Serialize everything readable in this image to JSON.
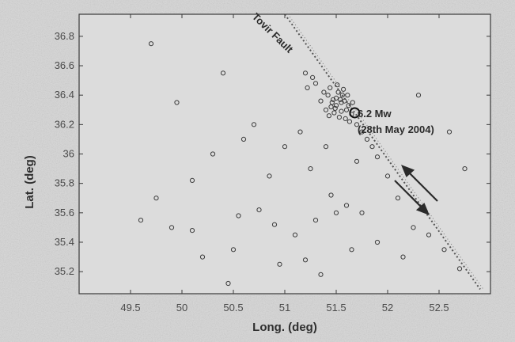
{
  "chart_data": {
    "type": "scatter",
    "xlabel": "Long. (deg)",
    "ylabel": "Lat. (deg)",
    "xlim": [
      49.0,
      53.0
    ],
    "ylim": [
      35.05,
      36.95
    ],
    "x_ticks": [
      "49.5",
      "50",
      "50.5",
      "51",
      "51.5",
      "52",
      "52.5"
    ],
    "y_ticks": [
      "35.2",
      "35.4",
      "35.6",
      "35.8",
      "36",
      "36.2",
      "36.4",
      "36.6",
      "36.8"
    ],
    "grid": false,
    "annotations": {
      "fault_label": "Tovir Fault",
      "magnitude_label": "6.2 Mw",
      "date_label": "(28th May 2004)"
    },
    "fault_line": [
      [
        51.0,
        36.95
      ],
      [
        52.9,
        35.08
      ]
    ],
    "mainshock": [
      51.68,
      36.28
    ],
    "points": [
      [
        51.45,
        36.32
      ],
      [
        51.5,
        36.38
      ],
      [
        51.55,
        36.35
      ],
      [
        51.6,
        36.3
      ],
      [
        51.42,
        36.4
      ],
      [
        51.48,
        36.28
      ],
      [
        51.52,
        36.42
      ],
      [
        51.58,
        36.36
      ],
      [
        51.62,
        36.33
      ],
      [
        51.46,
        36.35
      ],
      [
        51.4,
        36.3
      ],
      [
        51.53,
        36.25
      ],
      [
        51.65,
        36.27
      ],
      [
        51.57,
        36.44
      ],
      [
        51.5,
        36.33
      ],
      [
        51.44,
        36.45
      ],
      [
        51.61,
        36.4
      ],
      [
        51.55,
        36.29
      ],
      [
        51.47,
        36.37
      ],
      [
        51.59,
        36.24
      ],
      [
        51.35,
        36.36
      ],
      [
        51.7,
        36.2
      ],
      [
        51.38,
        36.42
      ],
      [
        51.66,
        36.35
      ],
      [
        51.51,
        36.47
      ],
      [
        51.43,
        36.26
      ],
      [
        51.56,
        36.4
      ],
      [
        51.63,
        36.22
      ],
      [
        51.49,
        36.31
      ],
      [
        51.54,
        36.37
      ],
      [
        51.3,
        36.48
      ],
      [
        51.75,
        36.15
      ],
      [
        51.27,
        36.52
      ],
      [
        51.8,
        36.1
      ],
      [
        51.2,
        36.55
      ],
      [
        51.22,
        36.45
      ],
      [
        51.85,
        36.05
      ],
      [
        51.9,
        35.98
      ],
      [
        49.75,
        35.7
      ],
      [
        49.6,
        35.55
      ],
      [
        49.9,
        35.5
      ],
      [
        50.1,
        35.48
      ],
      [
        50.2,
        35.3
      ],
      [
        50.45,
        35.12
      ],
      [
        50.55,
        35.58
      ],
      [
        50.75,
        35.62
      ],
      [
        50.9,
        35.52
      ],
      [
        51.1,
        35.45
      ],
      [
        51.2,
        35.28
      ],
      [
        51.35,
        35.18
      ],
      [
        51.5,
        35.6
      ],
      [
        51.45,
        35.72
      ],
      [
        51.6,
        35.65
      ],
      [
        51.75,
        35.6
      ],
      [
        51.9,
        35.4
      ],
      [
        52.1,
        35.7
      ],
      [
        52.25,
        35.5
      ],
      [
        52.4,
        35.45
      ],
      [
        52.55,
        35.35
      ],
      [
        52.7,
        35.22
      ],
      [
        50.3,
        36.0
      ],
      [
        50.6,
        36.1
      ],
      [
        50.85,
        35.85
      ],
      [
        51.0,
        36.05
      ],
      [
        51.25,
        35.9
      ],
      [
        51.4,
        36.05
      ],
      [
        51.7,
        35.95
      ],
      [
        52.0,
        35.85
      ],
      [
        49.95,
        36.35
      ],
      [
        50.4,
        36.55
      ],
      [
        50.7,
        36.2
      ],
      [
        52.3,
        36.4
      ],
      [
        52.6,
        36.15
      ],
      [
        52.75,
        35.9
      ],
      [
        51.15,
        36.15
      ],
      [
        51.3,
        35.55
      ],
      [
        51.65,
        35.35
      ],
      [
        52.15,
        35.3
      ],
      [
        49.7,
        36.75
      ],
      [
        50.1,
        35.82
      ],
      [
        50.5,
        35.35
      ],
      [
        50.95,
        35.25
      ]
    ]
  }
}
